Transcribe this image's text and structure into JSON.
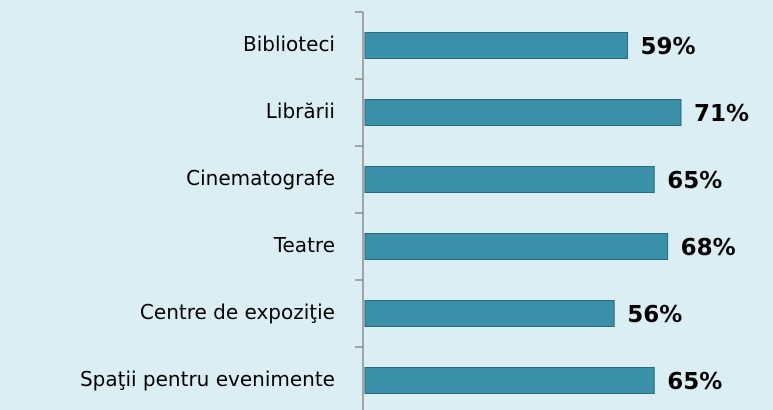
{
  "chart_data": {
    "type": "bar",
    "orientation": "horizontal",
    "categories": [
      "Biblioteci",
      "Librării",
      "Cinematografe",
      "Teatre",
      "Centre de expoziţie",
      "Spaţii pentru evenimente"
    ],
    "values": [
      59,
      71,
      65,
      68,
      56,
      65
    ],
    "value_labels": [
      "59%",
      "71%",
      "65%",
      "68%",
      "56%",
      "65%"
    ],
    "color": "#3b90a9"
  }
}
